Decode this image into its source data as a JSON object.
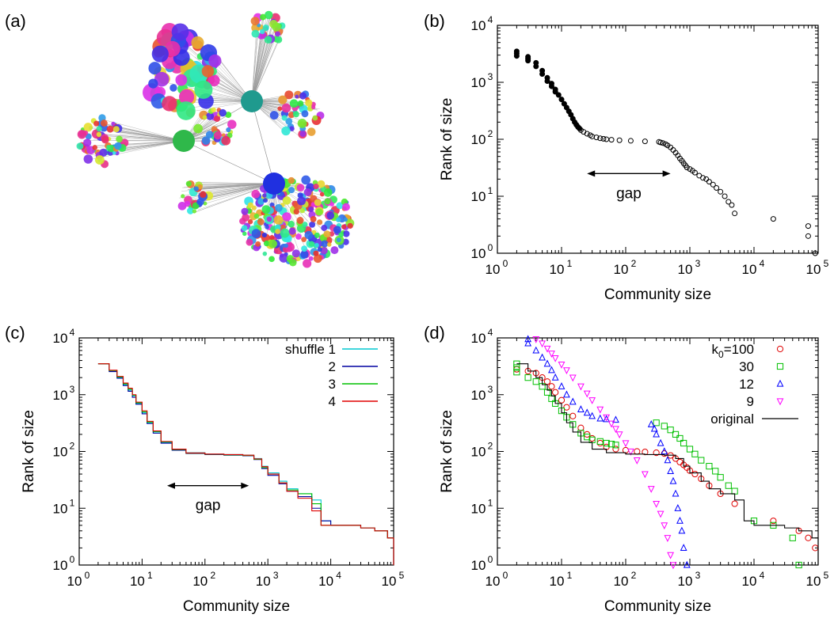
{
  "panel_labels": [
    "(a)",
    "(b)",
    "(c)",
    "(d)"
  ],
  "colors": {
    "b_marker": "#000000",
    "shuffle": [
      "#00c8d0",
      "#0000a0",
      "#00c000",
      "#e00000"
    ],
    "k0": [
      "#e00000",
      "#00c000",
      "#0000ff",
      "#ff00ff"
    ],
    "original": "#000000",
    "hubs": [
      "#2fb84a",
      "#1f9a8e",
      "#2030e0"
    ]
  },
  "chart_data": [
    {
      "panel": "(a)",
      "type": "other",
      "description_free": true
    },
    {
      "panel": "(b)",
      "type": "scatter",
      "xlabel": "Community size",
      "ylabel": "Rank of size",
      "xscale": "log",
      "yscale": "log",
      "xlim": [
        1,
        100000
      ],
      "ylim": [
        1,
        10000
      ],
      "xticks": [
        "10^0",
        "10^1",
        "10^2",
        "10^3",
        "10^4",
        "10^5"
      ],
      "yticks": [
        "10^0",
        "10^1",
        "10^2",
        "10^3",
        "10^4"
      ],
      "annotation": {
        "text": "gap",
        "arrow_x": [
          25,
          500
        ],
        "arrow_y": 25
      },
      "series": [
        {
          "marker": "circle",
          "x": [
            2,
            2,
            2,
            3,
            3,
            3,
            4,
            4,
            5,
            5,
            6,
            6,
            7,
            7,
            8,
            8,
            9,
            10,
            11,
            12,
            13,
            14,
            15,
            16,
            17,
            18,
            19,
            20,
            22,
            25,
            28,
            30,
            35,
            40,
            45,
            50,
            60,
            80,
            120,
            200,
            330,
            350,
            380,
            420,
            450,
            500,
            550,
            600,
            650,
            700,
            750,
            800,
            850,
            900,
            1000,
            1100,
            1200,
            1400,
            1600,
            1800,
            2000,
            2300,
            2600,
            3000,
            3500,
            4000,
            4500,
            5000,
            20000,
            70000,
            70000,
            90000
          ],
          "y": [
            3500,
            3200,
            2900,
            2800,
            2600,
            2400,
            2200,
            1900,
            1600,
            1400,
            1200,
            1050,
            950,
            850,
            750,
            680,
            600,
            500,
            420,
            360,
            310,
            270,
            230,
            200,
            180,
            165,
            155,
            145,
            135,
            125,
            118,
            112,
            108,
            104,
            102,
            100,
            98,
            96,
            94,
            92,
            90,
            88,
            86,
            82,
            78,
            72,
            65,
            58,
            52,
            46,
            42,
            38,
            35,
            32,
            30,
            28,
            26,
            23,
            21,
            20,
            18,
            16,
            14,
            12,
            10,
            8,
            7,
            5,
            4,
            3,
            2,
            1
          ]
        }
      ]
    },
    {
      "panel": "(c)",
      "type": "line",
      "xlabel": "Community size",
      "ylabel": "Rank of size",
      "xscale": "log",
      "yscale": "log",
      "xlim": [
        1,
        100000
      ],
      "ylim": [
        1,
        10000
      ],
      "xticks": [
        "10^0",
        "10^1",
        "10^2",
        "10^3",
        "10^4",
        "10^5"
      ],
      "yticks": [
        "10^0",
        "10^1",
        "10^2",
        "10^3",
        "10^4"
      ],
      "legend": "top-right",
      "annotation": {
        "text": "gap",
        "arrow_x": [
          25,
          500
        ],
        "arrow_y": 25
      },
      "series": [
        {
          "name": "shuffle 1",
          "x": [
            2,
            3,
            4,
            5,
            6,
            7,
            8,
            10,
            12,
            15,
            20,
            30,
            50,
            100,
            200,
            400,
            600,
            800,
            1000,
            1500,
            2000,
            3000,
            5000,
            7000,
            10000,
            30000,
            50000,
            80000,
            100000
          ],
          "y": [
            3500,
            2600,
            2000,
            1500,
            1200,
            950,
            700,
            480,
            320,
            220,
            145,
            110,
            95,
            90,
            88,
            86,
            75,
            55,
            42,
            30,
            22,
            18,
            14,
            6,
            5,
            4.5,
            4,
            3,
            1
          ]
        },
        {
          "name": "2",
          "x": [
            2,
            3,
            4,
            5,
            6,
            7,
            8,
            10,
            12,
            15,
            20,
            30,
            50,
            100,
            200,
            400,
            600,
            800,
            1000,
            1500,
            2000,
            3000,
            5000,
            7000,
            10000,
            30000,
            50000,
            80000,
            100000
          ],
          "y": [
            3500,
            2550,
            1950,
            1450,
            1150,
            900,
            680,
            460,
            310,
            210,
            140,
            105,
            92,
            88,
            86,
            84,
            72,
            50,
            38,
            27,
            20,
            16,
            10,
            6,
            5,
            4.5,
            4,
            3,
            1
          ]
        },
        {
          "name": "3",
          "x": [
            2,
            3,
            4,
            5,
            6,
            7,
            8,
            10,
            12,
            15,
            20,
            30,
            50,
            100,
            200,
            400,
            600,
            800,
            1000,
            1500,
            2000,
            3000,
            5000,
            7000,
            10000,
            30000,
            50000,
            80000,
            100000
          ],
          "y": [
            3500,
            2650,
            2050,
            1550,
            1250,
            980,
            720,
            500,
            330,
            225,
            148,
            108,
            93,
            89,
            87,
            85,
            73,
            52,
            40,
            28,
            21,
            18,
            12,
            5,
            5,
            4.5,
            4,
            3,
            1
          ]
        },
        {
          "name": "4",
          "x": [
            2,
            3,
            4,
            5,
            6,
            7,
            8,
            10,
            12,
            15,
            20,
            30,
            50,
            100,
            200,
            400,
            600,
            800,
            1000,
            1500,
            2000,
            3000,
            5000,
            7000,
            10000,
            30000,
            50000,
            80000,
            100000
          ],
          "y": [
            3500,
            2700,
            2100,
            1600,
            1300,
            1000,
            740,
            520,
            340,
            230,
            150,
            110,
            94,
            90,
            88,
            86,
            74,
            54,
            40,
            28,
            20,
            15,
            9,
            5,
            5,
            4.5,
            4,
            3,
            1
          ]
        }
      ]
    },
    {
      "panel": "(d)",
      "type": "scatter",
      "xlabel": "Community size",
      "ylabel": "Rank of size",
      "xscale": "log",
      "yscale": "log",
      "xlim": [
        1,
        100000
      ],
      "ylim": [
        1,
        10000
      ],
      "xticks": [
        "10^0",
        "10^1",
        "10^2",
        "10^3",
        "10^4",
        "10^5"
      ],
      "yticks": [
        "10^0",
        "10^1",
        "10^2",
        "10^3",
        "10^4"
      ],
      "legend": "top-right",
      "series": [
        {
          "name": "k0=100",
          "marker": "circle",
          "x": [
            2,
            3,
            4,
            5,
            6,
            7,
            8,
            10,
            12,
            15,
            20,
            25,
            30,
            40,
            50,
            70,
            100,
            150,
            200,
            300,
            400,
            500,
            600,
            700,
            800,
            900,
            1000,
            1200,
            1500,
            2000,
            3000,
            5000,
            20000,
            50000,
            70000,
            90000
          ],
          "y": [
            2800,
            2600,
            2400,
            2000,
            1700,
            1400,
            1100,
            800,
            600,
            420,
            260,
            200,
            170,
            140,
            120,
            110,
            105,
            100,
            98,
            95,
            92,
            85,
            75,
            65,
            58,
            52,
            46,
            40,
            33,
            25,
            18,
            12,
            6,
            4,
            3,
            2
          ]
        },
        {
          "name": "30",
          "marker": "square",
          "x": [
            2,
            2,
            2,
            3,
            4,
            5,
            6,
            7,
            8,
            10,
            12,
            15,
            20,
            25,
            30,
            40,
            50,
            60,
            70,
            300,
            400,
            500,
            600,
            700,
            800,
            1000,
            1200,
            1500,
            2000,
            2500,
            3000,
            4000,
            5000,
            10000,
            20000,
            40000,
            50000
          ],
          "y": [
            3500,
            3000,
            2500,
            2000,
            1700,
            1400,
            1100,
            850,
            700,
            520,
            400,
            300,
            210,
            180,
            160,
            150,
            140,
            135,
            130,
            320,
            280,
            240,
            200,
            170,
            140,
            110,
            90,
            70,
            55,
            45,
            35,
            25,
            20,
            6,
            5,
            3,
            1
          ]
        },
        {
          "name": "12",
          "marker": "triangle-up",
          "x": [
            3,
            3,
            4,
            5,
            6,
            7,
            8,
            10,
            12,
            15,
            20,
            25,
            30,
            40,
            50,
            70,
            250,
            280,
            300,
            350,
            400,
            450,
            500,
            550,
            600,
            650,
            700,
            750,
            800,
            900
          ],
          "y": [
            9500,
            8000,
            6000,
            4500,
            3500,
            2700,
            2000,
            1400,
            1000,
            750,
            550,
            480,
            420,
            380,
            370,
            360,
            300,
            250,
            200,
            140,
            100,
            70,
            45,
            30,
            18,
            10,
            6,
            4,
            2,
            1
          ]
        },
        {
          "name": "9",
          "marker": "triangle-down",
          "x": [
            4,
            5,
            6,
            7,
            8,
            10,
            12,
            15,
            20,
            25,
            30,
            40,
            50,
            60,
            70,
            80,
            100,
            120,
            150,
            200,
            250,
            300,
            350,
            400,
            450,
            500,
            550
          ],
          "y": [
            9500,
            8000,
            6500,
            5300,
            4400,
            3400,
            2700,
            2000,
            1400,
            1050,
            800,
            550,
            400,
            310,
            250,
            200,
            140,
            100,
            70,
            40,
            22,
            12,
            8,
            5,
            3,
            1.5,
            1
          ]
        },
        {
          "name": "original",
          "marker": "line",
          "x": [
            2,
            3,
            4,
            5,
            6,
            7,
            8,
            10,
            12,
            15,
            20,
            30,
            50,
            100,
            200,
            400,
            600,
            800,
            1000,
            1500,
            2000,
            3000,
            5000,
            7000,
            10000,
            30000,
            50000,
            80000,
            100000
          ],
          "y": [
            3500,
            2600,
            2000,
            1500,
            1200,
            950,
            700,
            480,
            320,
            220,
            145,
            110,
            95,
            90,
            88,
            86,
            75,
            55,
            42,
            30,
            22,
            18,
            14,
            6,
            5,
            4.5,
            4,
            3,
            1
          ]
        }
      ]
    }
  ],
  "legend_b_labels": {
    "k0_prefix": "k",
    "k0_sub": "0",
    "k0_suffix": "=100"
  }
}
